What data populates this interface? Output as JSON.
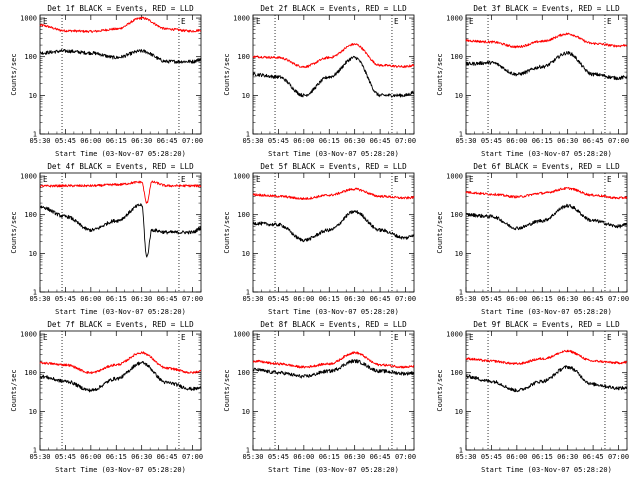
{
  "figure": {
    "colors": {
      "events": "#000000",
      "lld": "#ff0000",
      "axes": "#000000",
      "background": "#ffffff"
    },
    "x_ticks": [
      "05:30",
      "05:45",
      "06:00",
      "06:15",
      "06:30",
      "06:45",
      "07:00"
    ],
    "y_ticks": [
      "1",
      "10",
      "100",
      "1000"
    ],
    "marker": "E",
    "vlines_at": [
      "05:43",
      "06:52"
    ]
  },
  "chart_data": [
    {
      "type": "line",
      "title": "Det 1f BLACK = Events, RED = LLD",
      "xlabel": "Start Time (03-Nov-07 05:28:20)",
      "ylabel": "Counts/sec",
      "xlim": [
        "05:30",
        "07:05"
      ],
      "ylim": [
        1,
        1200
      ],
      "yscale": "log",
      "grid": false,
      "x": [
        "05:30",
        "05:45",
        "06:00",
        "06:15",
        "06:30",
        "06:45",
        "07:00",
        "07:05"
      ],
      "series": [
        {
          "color": "#ff0000",
          "values": [
            650,
            470,
            450,
            520,
            1000,
            520,
            460,
            490
          ]
        },
        {
          "color": "#000000",
          "values": [
            125,
            140,
            125,
            95,
            140,
            75,
            75,
            85
          ]
        }
      ]
    },
    {
      "type": "line",
      "title": "Det 2f BLACK = Events, RED = LLD",
      "xlabel": "Start Time (03-Nov-07 05:28:20)",
      "ylabel": "Counts/sec",
      "xlim": [
        "05:30",
        "07:05"
      ],
      "ylim": [
        1,
        1200
      ],
      "yscale": "log",
      "grid": false,
      "x": [
        "05:30",
        "05:45",
        "06:00",
        "06:15",
        "06:30",
        "06:45",
        "07:00",
        "07:05"
      ],
      "series": [
        {
          "color": "#ff0000",
          "values": [
            100,
            95,
            55,
            95,
            210,
            60,
            55,
            60
          ]
        },
        {
          "color": "#000000",
          "values": [
            35,
            30,
            10,
            30,
            95,
            10,
            10,
            12
          ]
        }
      ]
    },
    {
      "type": "line",
      "title": "Det 3f BLACK = Events, RED = LLD",
      "xlabel": "Start Time (03-Nov-07 05:28:20)",
      "ylabel": "Counts/sec",
      "xlim": [
        "05:30",
        "07:05"
      ],
      "ylim": [
        1,
        1200
      ],
      "yscale": "log",
      "grid": false,
      "x": [
        "05:30",
        "05:45",
        "06:00",
        "06:15",
        "06:30",
        "06:45",
        "07:00",
        "07:05"
      ],
      "series": [
        {
          "color": "#ff0000",
          "values": [
            260,
            240,
            180,
            250,
            390,
            220,
            190,
            200
          ]
        },
        {
          "color": "#000000",
          "values": [
            65,
            70,
            35,
            55,
            125,
            35,
            28,
            30
          ]
        }
      ]
    },
    {
      "type": "line",
      "title": "Det 4f BLACK = Events, RED = LLD",
      "xlabel": "Start Time (03-Nov-07 05:28:20)",
      "ylabel": "Counts/sec",
      "xlim": [
        "05:30",
        "07:05"
      ],
      "ylim": [
        1,
        1200
      ],
      "yscale": "log",
      "grid": false,
      "x": [
        "05:30",
        "05:45",
        "06:00",
        "06:15",
        "06:30",
        "06:33",
        "06:36",
        "06:45",
        "07:00",
        "07:05"
      ],
      "series": [
        {
          "color": "#ff0000",
          "values": [
            550,
            560,
            560,
            600,
            700,
            200,
            700,
            560,
            560,
            560
          ]
        },
        {
          "color": "#000000",
          "values": [
            160,
            90,
            40,
            70,
            180,
            8,
            40,
            35,
            35,
            45
          ]
        }
      ]
    },
    {
      "type": "line",
      "title": "Det 5f BLACK = Events, RED = LLD",
      "xlabel": "Start Time (03-Nov-07 05:28:20)",
      "ylabel": "Counts/sec",
      "xlim": [
        "05:30",
        "07:05"
      ],
      "ylim": [
        1,
        1200
      ],
      "yscale": "log",
      "grid": false,
      "x": [
        "05:30",
        "05:45",
        "06:00",
        "06:15",
        "06:30",
        "06:45",
        "07:00",
        "07:05"
      ],
      "series": [
        {
          "color": "#ff0000",
          "values": [
            330,
            300,
            260,
            320,
            460,
            300,
            270,
            280
          ]
        },
        {
          "color": "#000000",
          "values": [
            60,
            55,
            22,
            40,
            120,
            40,
            25,
            30
          ]
        }
      ]
    },
    {
      "type": "line",
      "title": "Det 6f BLACK = Events, RED = LLD",
      "xlabel": "Start Time (03-Nov-07 05:28:20)",
      "ylabel": "Counts/sec",
      "xlim": [
        "05:30",
        "07:05"
      ],
      "ylim": [
        1,
        1200
      ],
      "yscale": "log",
      "grid": false,
      "x": [
        "05:30",
        "05:45",
        "06:00",
        "06:15",
        "06:30",
        "06:45",
        "07:00",
        "07:05"
      ],
      "series": [
        {
          "color": "#ff0000",
          "values": [
            380,
            340,
            290,
            360,
            480,
            320,
            270,
            280
          ]
        },
        {
          "color": "#000000",
          "values": [
            100,
            90,
            45,
            70,
            170,
            70,
            50,
            55
          ]
        }
      ]
    },
    {
      "type": "line",
      "title": "Det 7f BLACK = Events, RED = LLD",
      "xlabel": "Start Time (03-Nov-07 05:28:20)",
      "ylabel": "Counts/sec",
      "xlim": [
        "05:30",
        "07:05"
      ],
      "ylim": [
        1,
        1200
      ],
      "yscale": "log",
      "grid": false,
      "x": [
        "05:30",
        "05:45",
        "06:00",
        "06:15",
        "06:30",
        "06:45",
        "07:00",
        "07:05"
      ],
      "series": [
        {
          "color": "#ff0000",
          "values": [
            180,
            160,
            100,
            160,
            330,
            130,
            100,
            110
          ]
        },
        {
          "color": "#000000",
          "values": [
            80,
            60,
            35,
            70,
            180,
            55,
            38,
            40
          ]
        }
      ]
    },
    {
      "type": "line",
      "title": "Det 8f BLACK = Events, RED = LLD",
      "xlabel": "Start Time (03-Nov-07 05:28:20)",
      "ylabel": "Counts/sec",
      "xlim": [
        "05:30",
        "07:05"
      ],
      "ylim": [
        1,
        1200
      ],
      "yscale": "log",
      "grid": false,
      "x": [
        "05:30",
        "05:45",
        "06:00",
        "06:15",
        "06:30",
        "06:45",
        "07:00",
        "07:05"
      ],
      "series": [
        {
          "color": "#ff0000",
          "values": [
            200,
            170,
            140,
            170,
            330,
            160,
            140,
            145
          ]
        },
        {
          "color": "#000000",
          "values": [
            120,
            100,
            80,
            110,
            200,
            110,
            95,
            100
          ]
        }
      ]
    },
    {
      "type": "line",
      "title": "Det 9f BLACK = Events, RED = LLD",
      "xlabel": "Start Time (03-Nov-07 05:28:20)",
      "ylabel": "Counts/sec",
      "xlim": [
        "05:30",
        "07:05"
      ],
      "ylim": [
        1,
        1200
      ],
      "yscale": "log",
      "grid": false,
      "x": [
        "05:30",
        "05:45",
        "06:00",
        "06:15",
        "06:30",
        "06:45",
        "07:00",
        "07:05"
      ],
      "series": [
        {
          "color": "#ff0000",
          "values": [
            230,
            200,
            170,
            230,
            360,
            200,
            180,
            185
          ]
        },
        {
          "color": "#000000",
          "values": [
            80,
            60,
            35,
            60,
            140,
            50,
            40,
            40
          ]
        }
      ]
    }
  ]
}
